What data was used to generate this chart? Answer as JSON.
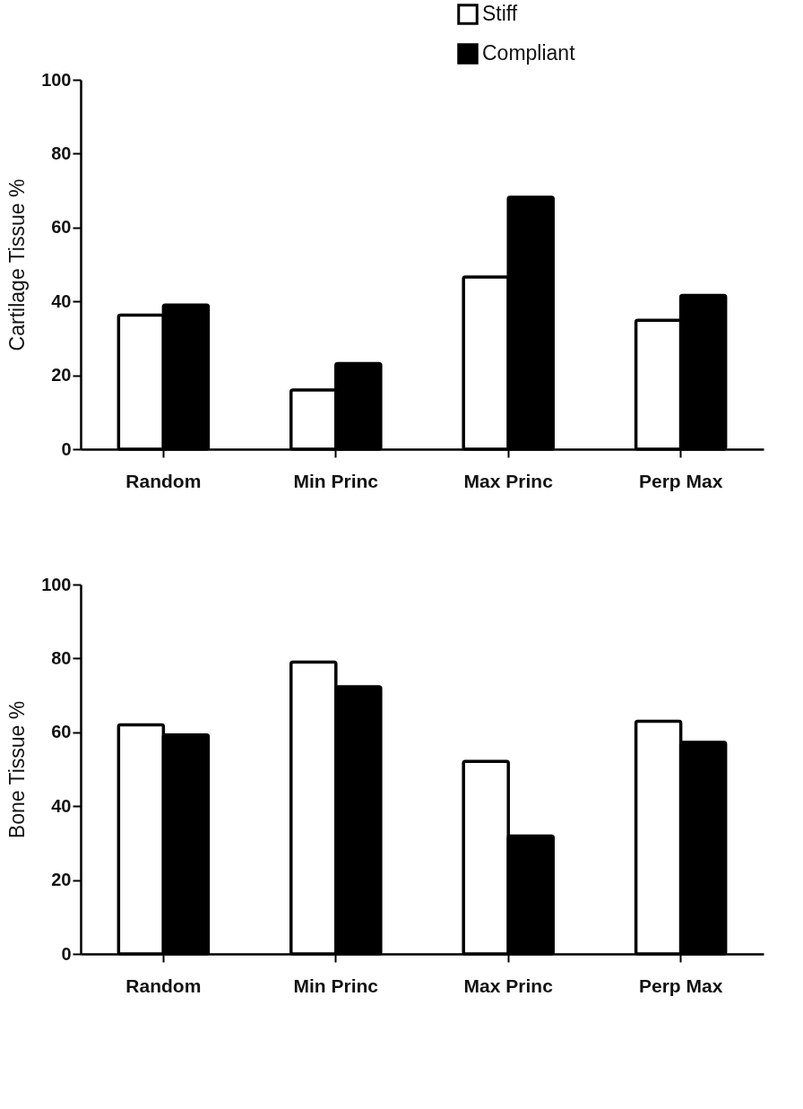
{
  "chart_data": [
    {
      "type": "bar",
      "ylabel": "Cartilage Tissue %",
      "categories": [
        "Random",
        "Min Princ",
        "Max Princ",
        "Perp Max"
      ],
      "series": [
        {
          "name": "Stiff",
          "color": "#ffffff",
          "values": [
            36.3,
            16.0,
            46.6,
            34.9
          ]
        },
        {
          "name": "Compliant",
          "color": "#000000",
          "values": [
            39.0,
            23.2,
            68.2,
            41.6
          ]
        }
      ],
      "ylim": [
        0,
        100
      ],
      "yticks": [
        0,
        20,
        40,
        60,
        80,
        100
      ],
      "grid": false,
      "legend": "top right"
    },
    {
      "type": "bar",
      "ylabel": "Bone Tissue %",
      "categories": [
        "Random",
        "Min Princ",
        "Max Princ",
        "Perp Max"
      ],
      "series": [
        {
          "name": "Stiff",
          "color": "#ffffff",
          "values": [
            62.0,
            79.0,
            52.1,
            63.0
          ]
        },
        {
          "name": "Compliant",
          "color": "#000000",
          "values": [
            59.3,
            72.3,
            31.9,
            57.3
          ]
        }
      ],
      "ylim": [
        0,
        100
      ],
      "yticks": [
        0,
        20,
        40,
        60,
        80,
        100
      ],
      "grid": false,
      "legend": "top right"
    }
  ]
}
